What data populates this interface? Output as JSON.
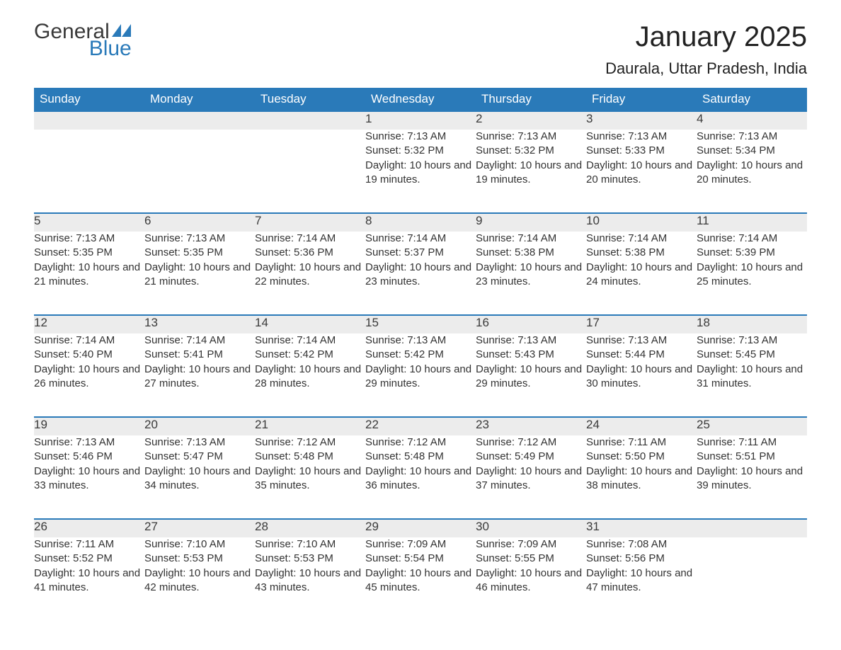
{
  "brand": {
    "line1": "General",
    "line2": "Blue",
    "text_color": "#3a3a3a",
    "accent_color": "#2a7ab9"
  },
  "title": "January 2025",
  "location": "Daurala, Uttar Pradesh, India",
  "colors": {
    "header_bg": "#2a7ab9",
    "header_text": "#ffffff",
    "daynum_bg": "#ececec",
    "daynum_border": "#2a7ab9",
    "body_text": "#333333",
    "page_bg": "#ffffff"
  },
  "day_headers": [
    "Sunday",
    "Monday",
    "Tuesday",
    "Wednesday",
    "Thursday",
    "Friday",
    "Saturday"
  ],
  "labels": {
    "sunrise": "Sunrise: ",
    "sunset": "Sunset: ",
    "daylight": "Daylight: "
  },
  "weeks": [
    [
      null,
      null,
      null,
      {
        "n": "1",
        "sunrise": "7:13 AM",
        "sunset": "5:32 PM",
        "daylight": "10 hours and 19 minutes."
      },
      {
        "n": "2",
        "sunrise": "7:13 AM",
        "sunset": "5:32 PM",
        "daylight": "10 hours and 19 minutes."
      },
      {
        "n": "3",
        "sunrise": "7:13 AM",
        "sunset": "5:33 PM",
        "daylight": "10 hours and 20 minutes."
      },
      {
        "n": "4",
        "sunrise": "7:13 AM",
        "sunset": "5:34 PM",
        "daylight": "10 hours and 20 minutes."
      }
    ],
    [
      {
        "n": "5",
        "sunrise": "7:13 AM",
        "sunset": "5:35 PM",
        "daylight": "10 hours and 21 minutes."
      },
      {
        "n": "6",
        "sunrise": "7:13 AM",
        "sunset": "5:35 PM",
        "daylight": "10 hours and 21 minutes."
      },
      {
        "n": "7",
        "sunrise": "7:14 AM",
        "sunset": "5:36 PM",
        "daylight": "10 hours and 22 minutes."
      },
      {
        "n": "8",
        "sunrise": "7:14 AM",
        "sunset": "5:37 PM",
        "daylight": "10 hours and 23 minutes."
      },
      {
        "n": "9",
        "sunrise": "7:14 AM",
        "sunset": "5:38 PM",
        "daylight": "10 hours and 23 minutes."
      },
      {
        "n": "10",
        "sunrise": "7:14 AM",
        "sunset": "5:38 PM",
        "daylight": "10 hours and 24 minutes."
      },
      {
        "n": "11",
        "sunrise": "7:14 AM",
        "sunset": "5:39 PM",
        "daylight": "10 hours and 25 minutes."
      }
    ],
    [
      {
        "n": "12",
        "sunrise": "7:14 AM",
        "sunset": "5:40 PM",
        "daylight": "10 hours and 26 minutes."
      },
      {
        "n": "13",
        "sunrise": "7:14 AM",
        "sunset": "5:41 PM",
        "daylight": "10 hours and 27 minutes."
      },
      {
        "n": "14",
        "sunrise": "7:14 AM",
        "sunset": "5:42 PM",
        "daylight": "10 hours and 28 minutes."
      },
      {
        "n": "15",
        "sunrise": "7:13 AM",
        "sunset": "5:42 PM",
        "daylight": "10 hours and 29 minutes."
      },
      {
        "n": "16",
        "sunrise": "7:13 AM",
        "sunset": "5:43 PM",
        "daylight": "10 hours and 29 minutes."
      },
      {
        "n": "17",
        "sunrise": "7:13 AM",
        "sunset": "5:44 PM",
        "daylight": "10 hours and 30 minutes."
      },
      {
        "n": "18",
        "sunrise": "7:13 AM",
        "sunset": "5:45 PM",
        "daylight": "10 hours and 31 minutes."
      }
    ],
    [
      {
        "n": "19",
        "sunrise": "7:13 AM",
        "sunset": "5:46 PM",
        "daylight": "10 hours and 33 minutes."
      },
      {
        "n": "20",
        "sunrise": "7:13 AM",
        "sunset": "5:47 PM",
        "daylight": "10 hours and 34 minutes."
      },
      {
        "n": "21",
        "sunrise": "7:12 AM",
        "sunset": "5:48 PM",
        "daylight": "10 hours and 35 minutes."
      },
      {
        "n": "22",
        "sunrise": "7:12 AM",
        "sunset": "5:48 PM",
        "daylight": "10 hours and 36 minutes."
      },
      {
        "n": "23",
        "sunrise": "7:12 AM",
        "sunset": "5:49 PM",
        "daylight": "10 hours and 37 minutes."
      },
      {
        "n": "24",
        "sunrise": "7:11 AM",
        "sunset": "5:50 PM",
        "daylight": "10 hours and 38 minutes."
      },
      {
        "n": "25",
        "sunrise": "7:11 AM",
        "sunset": "5:51 PM",
        "daylight": "10 hours and 39 minutes."
      }
    ],
    [
      {
        "n": "26",
        "sunrise": "7:11 AM",
        "sunset": "5:52 PM",
        "daylight": "10 hours and 41 minutes."
      },
      {
        "n": "27",
        "sunrise": "7:10 AM",
        "sunset": "5:53 PM",
        "daylight": "10 hours and 42 minutes."
      },
      {
        "n": "28",
        "sunrise": "7:10 AM",
        "sunset": "5:53 PM",
        "daylight": "10 hours and 43 minutes."
      },
      {
        "n": "29",
        "sunrise": "7:09 AM",
        "sunset": "5:54 PM",
        "daylight": "10 hours and 45 minutes."
      },
      {
        "n": "30",
        "sunrise": "7:09 AM",
        "sunset": "5:55 PM",
        "daylight": "10 hours and 46 minutes."
      },
      {
        "n": "31",
        "sunrise": "7:08 AM",
        "sunset": "5:56 PM",
        "daylight": "10 hours and 47 minutes."
      },
      null
    ]
  ]
}
